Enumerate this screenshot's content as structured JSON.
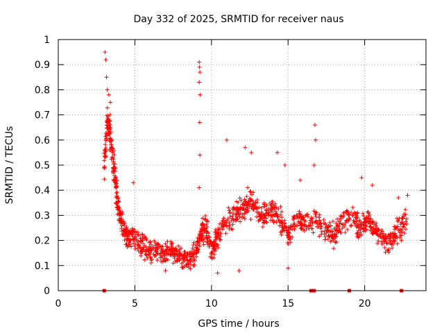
{
  "chart_data": {
    "type": "scatter",
    "marker": "plus",
    "color": "#ff0000",
    "title": "Day 332 of 2025, SRMTID for receiver naus",
    "xlabel": "GPS time / hours",
    "ylabel": "SRMTID / TECUs",
    "xlim": [
      0,
      24
    ],
    "ylim": [
      0,
      1
    ],
    "xticks": [
      0,
      5,
      10,
      15,
      20
    ],
    "xtick_labels": [
      "0",
      "5",
      "10",
      "15",
      "20"
    ],
    "yticks": [
      0,
      0.1,
      0.2,
      0.3,
      0.4,
      0.5,
      0.6,
      0.7,
      0.8,
      0.9,
      1
    ],
    "ytick_labels": [
      "0",
      "0.1",
      "0.2",
      "0.3",
      "0.4",
      "0.5",
      "0.6",
      "0.7",
      "0.8",
      "0.9",
      "1"
    ],
    "grid": true,
    "zero_markers_x": [
      3.0,
      16.5,
      16.7,
      19.0,
      22.4
    ],
    "trend": [
      {
        "x": 3.0,
        "y": 0.5
      },
      {
        "x": 3.2,
        "y": 0.68
      },
      {
        "x": 3.4,
        "y": 0.62
      },
      {
        "x": 3.6,
        "y": 0.5
      },
      {
        "x": 3.8,
        "y": 0.4
      },
      {
        "x": 4.0,
        "y": 0.3
      },
      {
        "x": 4.3,
        "y": 0.24
      },
      {
        "x": 4.6,
        "y": 0.21
      },
      {
        "x": 5.0,
        "y": 0.2
      },
      {
        "x": 5.5,
        "y": 0.18
      },
      {
        "x": 6.0,
        "y": 0.16
      },
      {
        "x": 6.5,
        "y": 0.16
      },
      {
        "x": 7.0,
        "y": 0.15
      },
      {
        "x": 7.5,
        "y": 0.16
      },
      {
        "x": 8.0,
        "y": 0.14
      },
      {
        "x": 8.5,
        "y": 0.12
      },
      {
        "x": 9.0,
        "y": 0.15
      },
      {
        "x": 9.3,
        "y": 0.22
      },
      {
        "x": 9.6,
        "y": 0.26
      },
      {
        "x": 10.0,
        "y": 0.16
      },
      {
        "x": 10.3,
        "y": 0.2
      },
      {
        "x": 10.8,
        "y": 0.26
      },
      {
        "x": 11.5,
        "y": 0.3
      },
      {
        "x": 12.0,
        "y": 0.32
      },
      {
        "x": 12.5,
        "y": 0.36
      },
      {
        "x": 13.0,
        "y": 0.32
      },
      {
        "x": 13.5,
        "y": 0.3
      },
      {
        "x": 14.0,
        "y": 0.33
      },
      {
        "x": 14.5,
        "y": 0.28
      },
      {
        "x": 15.0,
        "y": 0.22
      },
      {
        "x": 15.5,
        "y": 0.28
      },
      {
        "x": 16.0,
        "y": 0.27
      },
      {
        "x": 16.8,
        "y": 0.28
      },
      {
        "x": 17.5,
        "y": 0.24
      },
      {
        "x": 18.0,
        "y": 0.23
      },
      {
        "x": 18.5,
        "y": 0.26
      },
      {
        "x": 19.3,
        "y": 0.3
      },
      {
        "x": 19.7,
        "y": 0.24
      },
      {
        "x": 20.2,
        "y": 0.28
      },
      {
        "x": 20.7,
        "y": 0.24
      },
      {
        "x": 21.2,
        "y": 0.2
      },
      {
        "x": 21.7,
        "y": 0.2
      },
      {
        "x": 22.2,
        "y": 0.24
      },
      {
        "x": 22.8,
        "y": 0.28
      }
    ],
    "outliers": [
      {
        "x": 3.05,
        "y": 0.95
      },
      {
        "x": 3.1,
        "y": 0.92
      },
      {
        "x": 3.15,
        "y": 0.85
      },
      {
        "x": 3.2,
        "y": 0.8
      },
      {
        "x": 3.3,
        "y": 0.78
      },
      {
        "x": 3.4,
        "y": 0.75
      },
      {
        "x": 9.2,
        "y": 0.91
      },
      {
        "x": 9.22,
        "y": 0.89
      },
      {
        "x": 9.24,
        "y": 0.87
      },
      {
        "x": 9.2,
        "y": 0.83
      },
      {
        "x": 9.25,
        "y": 0.78
      },
      {
        "x": 9.23,
        "y": 0.67
      },
      {
        "x": 9.24,
        "y": 0.54
      },
      {
        "x": 9.2,
        "y": 0.41
      },
      {
        "x": 16.75,
        "y": 0.66
      },
      {
        "x": 16.8,
        "y": 0.6
      },
      {
        "x": 16.7,
        "y": 0.5
      },
      {
        "x": 11.0,
        "y": 0.6
      },
      {
        "x": 12.2,
        "y": 0.57
      },
      {
        "x": 12.6,
        "y": 0.55
      },
      {
        "x": 14.3,
        "y": 0.55
      },
      {
        "x": 14.8,
        "y": 0.5
      },
      {
        "x": 15.8,
        "y": 0.44
      },
      {
        "x": 4.9,
        "y": 0.43
      },
      {
        "x": 19.8,
        "y": 0.45
      },
      {
        "x": 20.5,
        "y": 0.42
      },
      {
        "x": 22.2,
        "y": 0.37
      },
      {
        "x": 22.8,
        "y": 0.38
      },
      {
        "x": 10.4,
        "y": 0.07
      },
      {
        "x": 11.8,
        "y": 0.08
      },
      {
        "x": 15.0,
        "y": 0.09
      },
      {
        "x": 7.0,
        "y": 0.08
      }
    ],
    "scatter_points_per_trend_segment": 32,
    "scatter_spread": 0.08
  }
}
